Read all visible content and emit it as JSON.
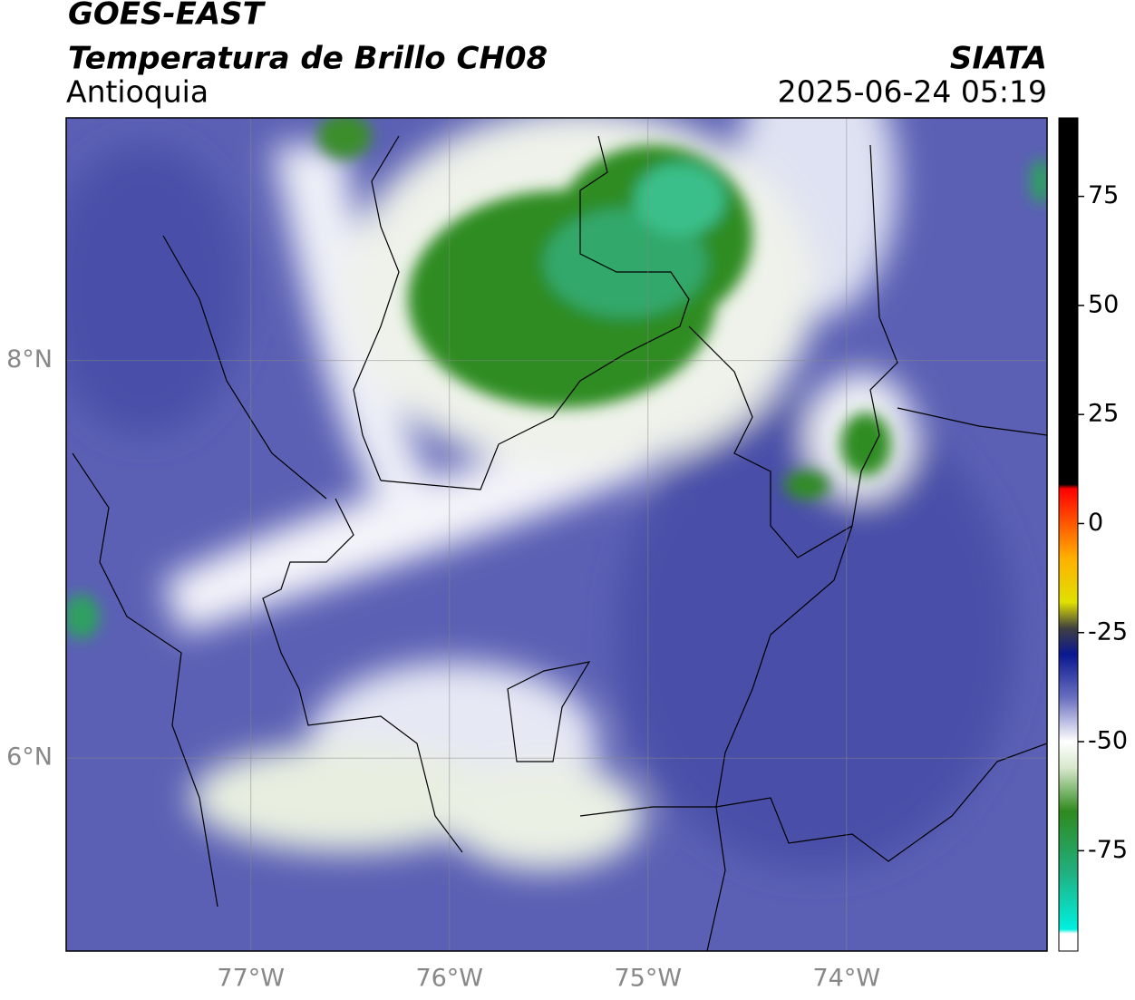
{
  "header": {
    "title": "GOES-EAST",
    "subtitle": "Temperatura de Brillo CH08",
    "region": "Antioquia",
    "source": "SIATA",
    "datetime": "2025-06-24 05:19"
  },
  "map": {
    "xlim": [
      -77.93,
      -72.99
    ],
    "ylim": [
      5.03,
      9.22
    ],
    "xticks": [
      {
        "value": -77,
        "label": "77°W"
      },
      {
        "value": -76,
        "label": "76°W"
      },
      {
        "value": -75,
        "label": "75°W"
      },
      {
        "value": -74,
        "label": "74°W"
      }
    ],
    "yticks": [
      {
        "value": 8,
        "label": "8°N"
      },
      {
        "value": 6,
        "label": "6°N"
      }
    ],
    "grid": true
  },
  "colorbar": {
    "lim": [
      -98,
      93
    ],
    "ticks": [
      75,
      50,
      25,
      0,
      -25,
      -50,
      -75
    ],
    "stops": [
      {
        "value": -98,
        "color": "#ffffff"
      },
      {
        "value": -94,
        "color": "#ffffff"
      },
      {
        "value": -93,
        "color": "#00f0e0"
      },
      {
        "value": -80,
        "color": "#20b080"
      },
      {
        "value": -66,
        "color": "#2e8a1e"
      },
      {
        "value": -56,
        "color": "#d8e8cc"
      },
      {
        "value": -50,
        "color": "#ffffff"
      },
      {
        "value": -40,
        "color": "#6a70c0"
      },
      {
        "value": -30,
        "color": "#0a1890"
      },
      {
        "value": -24,
        "color": "#404040"
      },
      {
        "value": -18,
        "color": "#e0e000"
      },
      {
        "value": -8,
        "color": "#ffb000"
      },
      {
        "value": 8,
        "color": "#ff0000"
      },
      {
        "value": 9,
        "color": "#000000"
      },
      {
        "value": 93,
        "color": "#000000"
      }
    ]
  }
}
